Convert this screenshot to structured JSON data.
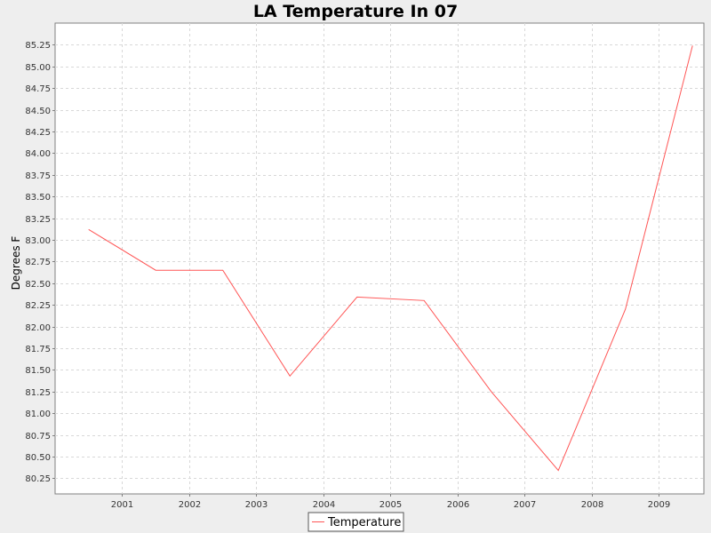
{
  "chart_data": {
    "type": "line",
    "title": "LA Temperature In 07",
    "xlabel": "",
    "ylabel": "Degrees F",
    "x": [
      2000.5,
      2001.5,
      2002.5,
      2003.5,
      2004.5,
      2005.5,
      2006.5,
      2007.5,
      2008.5,
      2009.5
    ],
    "x_ticks": [
      "2001",
      "2002",
      "2003",
      "2004",
      "2005",
      "2006",
      "2007",
      "2008",
      "2009"
    ],
    "x_tick_values": [
      2001,
      2002,
      2003,
      2004,
      2005,
      2006,
      2007,
      2008,
      2009
    ],
    "xlim": [
      2000.0,
      2009.67
    ],
    "ylim": [
      80.07,
      85.5
    ],
    "y_ticks": [
      "80.25",
      "80.50",
      "80.75",
      "81.00",
      "81.25",
      "81.50",
      "81.75",
      "82.00",
      "82.25",
      "82.50",
      "82.75",
      "83.00",
      "83.25",
      "83.50",
      "83.75",
      "84.00",
      "84.25",
      "84.50",
      "84.75",
      "85.00",
      "85.25"
    ],
    "series": [
      {
        "name": "Temperature",
        "color": "#ff5555",
        "values": [
          83.12,
          82.65,
          82.65,
          81.43,
          82.34,
          82.3,
          81.25,
          80.34,
          82.2,
          85.24
        ]
      }
    ],
    "grid": true,
    "legend": "bottom-center",
    "background": "#ffffff",
    "outer_background": "#eeeeee",
    "gridline_color": "#d8d8d8"
  }
}
